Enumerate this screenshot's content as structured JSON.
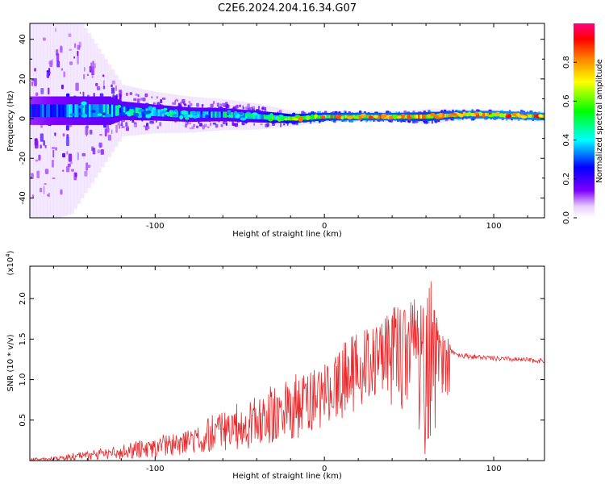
{
  "title": "C2E6.2024.204.16.34.G07",
  "chart_data": [
    {
      "type": "heatmap",
      "xlabel": "Height of straight line (km)",
      "ylabel": "Frequency (Hz)",
      "xlim": [
        -174,
        130
      ],
      "ylim": [
        -50,
        48
      ],
      "xticks": [
        -100,
        0,
        100
      ],
      "yticks": [
        -40,
        -20,
        0,
        20,
        40
      ],
      "colorbar": {
        "label": "Normalized spectral amplitude",
        "range": [
          0,
          1
        ],
        "ticks": [
          "0.0",
          "0.2",
          "0.4",
          "0.6",
          "0.8"
        ],
        "colormap": [
          "#ffffff",
          "#7f00ff",
          "#0000ff",
          "#00ffff",
          "#00ff00",
          "#ffff00",
          "#ff8000",
          "#ff0000",
          "#ff0080"
        ]
      },
      "ridge": {
        "description": "spectral energy concentrated near the centre frequency line",
        "x": [
          -174,
          -150,
          -120,
          -100,
          -80,
          -60,
          -40,
          -20,
          0,
          20,
          40,
          60,
          80,
          100,
          130
        ],
        "center_hz": [
          4,
          4,
          4,
          3,
          2,
          2,
          1,
          0,
          1,
          1,
          1,
          1,
          2,
          2,
          1
        ],
        "spread_hz": [
          45,
          40,
          10,
          8,
          7,
          6,
          5,
          3,
          2,
          2,
          2,
          3,
          2,
          2,
          2
        ],
        "peak_amplitude": [
          0.3,
          0.4,
          0.45,
          0.45,
          0.45,
          0.45,
          0.5,
          0.75,
          0.8,
          0.85,
          0.85,
          0.8,
          0.85,
          0.9,
          0.9
        ]
      }
    },
    {
      "type": "line",
      "xlabel": "Height of straight line (km)",
      "ylabel": "SNR (10 * v/v)",
      "y_multiplier": "(x10^4)",
      "xlim": [
        -174,
        130
      ],
      "ylim": [
        0,
        24000
      ],
      "xticks": [
        -100,
        0,
        100
      ],
      "yticks": [
        "0.5",
        "1.0",
        "1.5",
        "2.0"
      ],
      "color": "#e8282a",
      "series": [
        {
          "x": [
            -174,
            -160,
            -140,
            -120,
            -100,
            -80,
            -60,
            -40,
            -30,
            -20,
            -10,
            0,
            10,
            20,
            30,
            40,
            50,
            55,
            60,
            62,
            65,
            70,
            80,
            90,
            100,
            110,
            120,
            130
          ],
          "y": [
            100,
            200,
            600,
            1100,
            1800,
            2500,
            3800,
            5000,
            6000,
            6800,
            7500,
            8500,
            10000,
            11000,
            13000,
            14000,
            15000,
            14000,
            10000,
            1000,
            14000,
            14000,
            13000,
            12800,
            12600,
            12500,
            12400,
            12300
          ],
          "peak_envelope": [
            300,
            500,
            1200,
            2000,
            3000,
            4000,
            6500,
            8000,
            9500,
            10500,
            11000,
            12000,
            14500,
            16000,
            17500,
            19000,
            19500,
            20500,
            21000,
            24000,
            19000,
            16000,
            13500,
            13500,
            12800,
            12700,
            12600,
            12500
          ],
          "trough_envelope": [
            0,
            0,
            0,
            200,
            400,
            800,
            1200,
            1500,
            2000,
            2500,
            3000,
            4000,
            5000,
            6000,
            7000,
            6000,
            5000,
            4000,
            2000,
            500,
            1500,
            6000,
            12500,
            12300,
            12200,
            12200,
            12100,
            12000
          ]
        }
      ]
    }
  ]
}
